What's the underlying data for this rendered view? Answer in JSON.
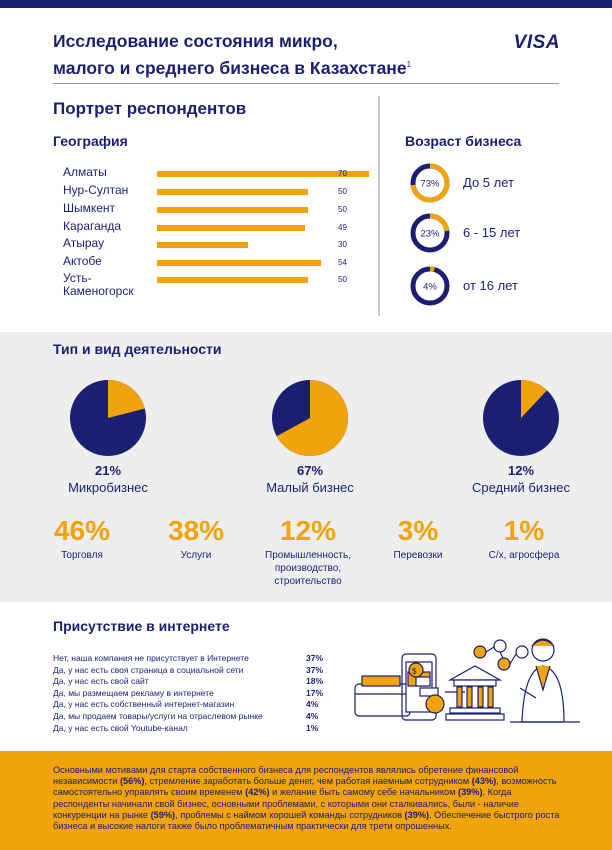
{
  "header": {
    "title_line1": "Исследование состояния микро,",
    "title_line2": "малого и среднего бизнеса в Казахстане",
    "title_footnote": "1",
    "logo": "VISA"
  },
  "portrait": {
    "title": "Портрет респондентов",
    "geography_title": "География",
    "age_title": "Возраст бизнеса"
  },
  "colors": {
    "navy": "#1a1f71",
    "orange": "#f0a30a",
    "gray_bg": "#eeeeef"
  },
  "chart_data": [
    {
      "type": "bar",
      "title": "География",
      "categories": [
        "Алматы",
        "Нур-Султан",
        "Шымкент",
        "Караганда",
        "Атырау",
        "Актобе",
        "Усть-Каменогорск"
      ],
      "category_labels": [
        [
          "Алматы"
        ],
        [
          "Нур-Султан"
        ],
        [
          "Шымкент"
        ],
        [
          "Караганда"
        ],
        [
          "Атырау"
        ],
        [
          "Актобе"
        ],
        [
          "Усть-",
          "Каменогорск"
        ]
      ],
      "values": [
        70,
        50,
        50,
        49,
        30,
        54,
        50
      ],
      "orientation": "horizontal"
    },
    {
      "type": "pie",
      "title": "Возраст бизнеса",
      "categories": [
        "До 5 лет",
        "6 - 15 лет",
        "от 16 лет"
      ],
      "values": [
        73,
        23,
        4
      ],
      "labels": [
        "73%",
        "23%",
        "4%"
      ]
    },
    {
      "type": "pie",
      "title": "Тип и вид деятельности",
      "categories": [
        "Микробизнес",
        "Малый бизнес",
        "Средний бизнес"
      ],
      "values": [
        21,
        67,
        12
      ],
      "labels": [
        "21%",
        "67%",
        "12%"
      ]
    },
    {
      "type": "bar",
      "title": "Тип и вид деятельности",
      "categories": [
        "Торговля",
        "Услуги",
        "Промышленность, производство, строительство",
        "Перевозки",
        "С/х, агросфера"
      ],
      "values": [
        46,
        38,
        12,
        3,
        1
      ],
      "labels": [
        "46%",
        "38%",
        "12%",
        "3%",
        "1%"
      ]
    },
    {
      "type": "table",
      "title": "Присутствие в интернете",
      "categories": [
        "Нет, наша компания не присутствует в Интернете",
        "Да, у нас есть своя страница в социальной сети",
        "Да, у нас есть свой сайт",
        "Да, мы размещаем рекламу в интернете",
        "Да, у нас есть собственный интернет-магазин",
        "Да, мы продаем товары/услуги на отраслевом рынке",
        "Да, у нас есть свой Youtube-канал"
      ],
      "values": [
        37,
        37,
        18,
        17,
        4,
        4,
        1
      ],
      "labels": [
        "37%",
        "37%",
        "18%",
        "17%",
        "4%",
        "4%",
        "1%"
      ]
    }
  ],
  "activity": {
    "title": "Тип и вид деятельности",
    "activity_labels": [
      [
        "Торговля"
      ],
      [
        "Услуги"
      ],
      [
        "Промышленность,",
        "производство,",
        "строительство"
      ],
      [
        "Перевозки"
      ],
      [
        "С/х, агросфера"
      ]
    ]
  },
  "internet": {
    "title": "Присутствие в интернете"
  },
  "footer": {
    "segments": [
      {
        "t": "Основными мотивами для старта собственного бизнеса для респондентов являлись обретение финансовой независимости ",
        "b": false
      },
      {
        "t": "(56%)",
        "b": true
      },
      {
        "t": ", стремление заработать больше денег, чем работая наемным сотрудником ",
        "b": false
      },
      {
        "t": "(43%)",
        "b": true
      },
      {
        "t": ", возможность самостоятельно управлять своим временем ",
        "b": false
      },
      {
        "t": "(42%)",
        "b": true
      },
      {
        "t": " и желание быть самому себе начальником ",
        "b": false
      },
      {
        "t": "(39%)",
        "b": true
      },
      {
        "t": ". Когда респонденты начинали свой бизнес, основными проблемами, с которыми они сталкивались, были - наличие конкуренции на рынке ",
        "b": false
      },
      {
        "t": "(59%)",
        "b": true
      },
      {
        "t": ", проблемы с наймом хорошей команды сотрудников ",
        "b": false
      },
      {
        "t": "(39%)",
        "b": true
      },
      {
        "t": ". Обеспечение быстрого роста бизнеса и высокие налоги также было проблематичным практически для трети опрошенных.",
        "b": false
      }
    ]
  }
}
